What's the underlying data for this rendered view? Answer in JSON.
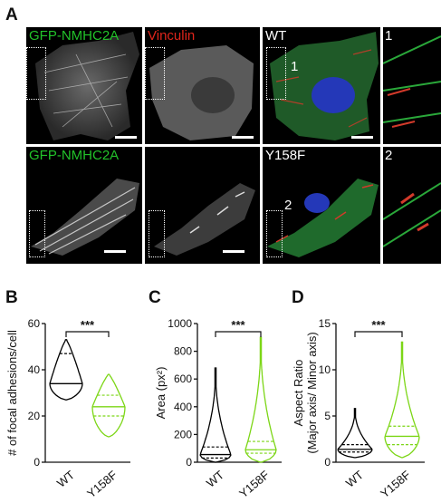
{
  "figure": {
    "panels": {
      "a": "A",
      "b": "B",
      "c": "C",
      "d": "D"
    },
    "micrographs": {
      "row1": {
        "ch1_label": "GFP-NMHC2A",
        "ch2_label": "Vinculin",
        "merge_label": "WT",
        "roi_label": "1",
        "inset_label": "1"
      },
      "row2": {
        "ch1_label": "GFP-NMHC2A",
        "merge_label": "Y158F",
        "roi_label": "2",
        "inset_label": "2"
      },
      "colors": {
        "gfp_label": "#22c22a",
        "vinculin_label": "#e0251b",
        "white_label": "#ffffff"
      }
    }
  },
  "chart_data": [
    {
      "type": "violin",
      "panel": "B",
      "ylabel": "# of focal adhesions/cell",
      "categories": [
        "WT",
        "Y158F"
      ],
      "ylim": [
        0,
        60
      ],
      "yticks": [
        0,
        20,
        40,
        60
      ],
      "significance": "***",
      "series": [
        {
          "category": "WT",
          "color": "#000000",
          "min": 27,
          "q1": 27,
          "median": 34,
          "q3": 47,
          "max": 53
        },
        {
          "category": "Y158F",
          "color": "#7cd616",
          "min": 11,
          "q1": 20,
          "median": 24,
          "q3": 29,
          "max": 38
        }
      ]
    },
    {
      "type": "violin",
      "panel": "C",
      "ylabel": "Area (px²)",
      "categories": [
        "WT",
        "Y158F"
      ],
      "ylim": [
        0,
        1000
      ],
      "yticks": [
        0,
        200,
        400,
        600,
        800,
        1000
      ],
      "significance": "***",
      "series": [
        {
          "category": "WT",
          "color": "#000000",
          "min": 0,
          "q1": 30,
          "median": 55,
          "q3": 110,
          "max": 680
        },
        {
          "category": "Y158F",
          "color": "#7cd616",
          "min": 0,
          "q1": 65,
          "median": 90,
          "q3": 150,
          "max": 900
        }
      ]
    },
    {
      "type": "violin",
      "panel": "D",
      "ylabel": "Aspect Ratio (Major axis/ Minor axis)",
      "categories": [
        "WT",
        "Y158F"
      ],
      "ylim": [
        0,
        15
      ],
      "yticks": [
        0,
        5,
        10,
        15
      ],
      "significance": "***",
      "series": [
        {
          "category": "WT",
          "color": "#000000",
          "min": 0.5,
          "q1": 1.1,
          "median": 1.4,
          "q3": 1.9,
          "max": 5.8
        },
        {
          "category": "Y158F",
          "color": "#7cd616",
          "min": 0.5,
          "q1": 1.9,
          "median": 2.8,
          "q3": 3.9,
          "max": 13
        }
      ]
    }
  ]
}
